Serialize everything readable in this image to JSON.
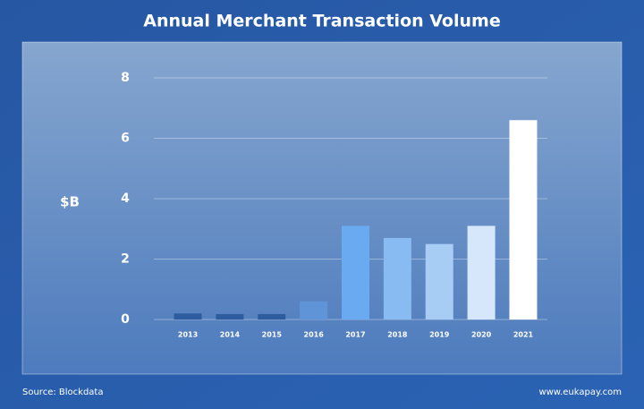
{
  "chart_data": {
    "type": "bar",
    "title": "Annual Merchant Transaction Volume",
    "y_label": "$B",
    "categories": [
      "2013",
      "2014",
      "2015",
      "2016",
      "2017",
      "2018",
      "2019",
      "2020",
      "2021"
    ],
    "values": [
      0.2,
      0.18,
      0.18,
      0.6,
      3.1,
      2.7,
      2.5,
      3.1,
      6.6
    ],
    "colors": [
      "#2f5c9e",
      "#2f5c9e",
      "#2f5c9e",
      "#5f95d8",
      "#6aaaf0",
      "#88bbf2",
      "#a8cdf5",
      "#d6e7fb",
      "#ffffff"
    ],
    "ylim": [
      0,
      8
    ],
    "yticks": [
      0,
      2,
      4,
      6,
      8
    ],
    "grid": true,
    "source": "Source: Blockdata",
    "footer": "www.eukapay.com"
  }
}
